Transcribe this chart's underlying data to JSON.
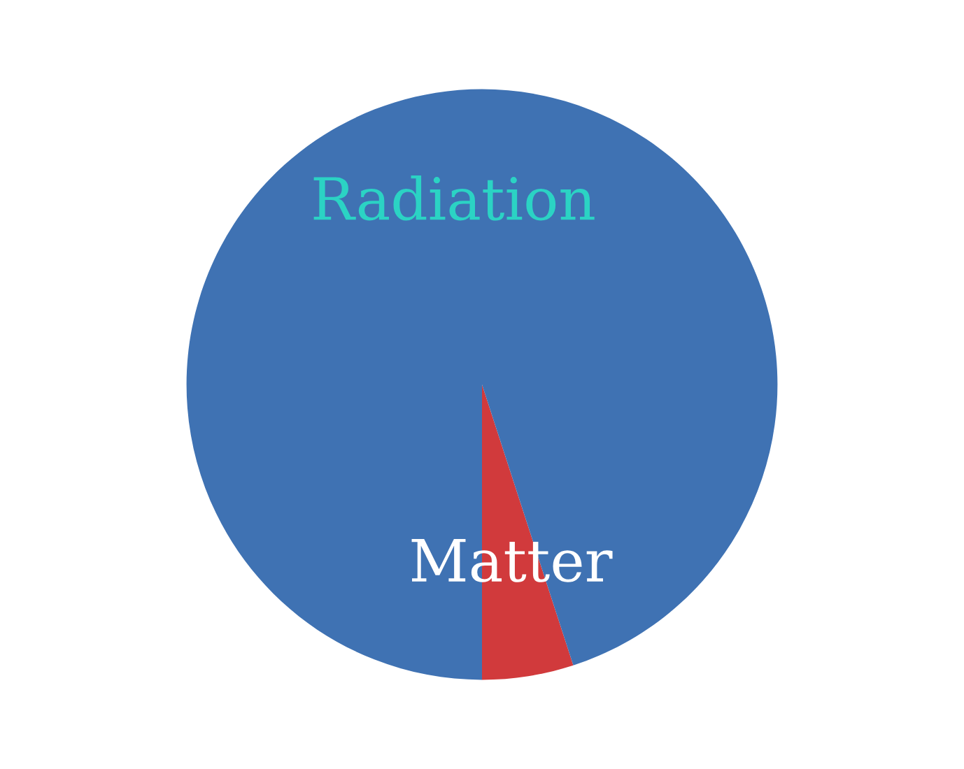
{
  "chart_data": {
    "type": "pie",
    "categories": [
      "Matter",
      "Radiation"
    ],
    "values": [
      5,
      95
    ],
    "colors": [
      "#d13a3c",
      "#3f72b3"
    ]
  }
}
